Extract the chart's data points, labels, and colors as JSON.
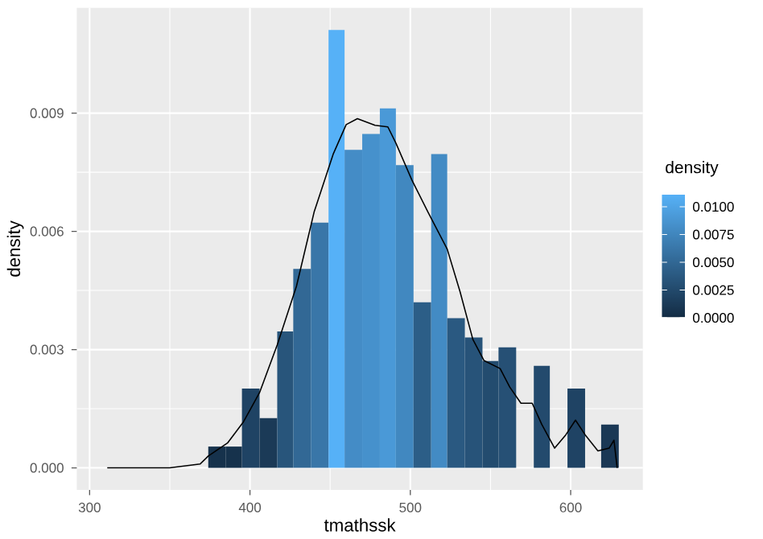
{
  "chart_data": {
    "type": "histogram",
    "xlabel": "tmathssk",
    "ylabel": "density",
    "clabel": "density",
    "bins": [
      374,
      385,
      395,
      406,
      417,
      427,
      438,
      449,
      459,
      470,
      481,
      491,
      502,
      513,
      523,
      534,
      545,
      555,
      566,
      577,
      587,
      598,
      609,
      619,
      630
    ],
    "values": [
      0.00054,
      0.00054,
      0.00201,
      0.00126,
      0.00346,
      0.00505,
      0.00622,
      0.01111,
      0.00807,
      0.00847,
      0.00912,
      0.00768,
      0.0042,
      0.00796,
      0.0038,
      0.00331,
      0.00271,
      0.00306,
      0,
      0.00259,
      0,
      0.00201,
      0,
      0.0011
    ],
    "colors": [
      "#16324C",
      "#16324C",
      "#1F4364",
      "#1B3A57",
      "#28557B",
      "#326895",
      "#3976A8",
      "#56B1F7",
      "#448CC6",
      "#4691CC",
      "#4A99D7",
      "#4188C0",
      "#2C5E87",
      "#438BC4",
      "#2A5981",
      "#275379",
      "#234C6F",
      "#265075",
      "#132B43",
      "#234A6D",
      "#132B43",
      "#1F4364",
      "#132B43",
      "#1A3855"
    ],
    "series": [
      {
        "type": "line",
        "color": "#000000",
        "x": [
          311,
          350,
          369,
          374,
          386,
          396,
          406,
          417,
          429,
          440,
          452,
          460,
          467,
          478,
          486,
          491,
          501,
          511,
          523,
          531,
          539,
          546,
          556,
          562,
          569,
          576,
          582,
          590,
          597,
          603,
          609,
          617,
          624,
          627,
          629
        ],
        "values": [
          0,
          0,
          0.0001,
          0.0003,
          0.00063,
          0.00117,
          0.00191,
          0.00312,
          0.00461,
          0.00649,
          0.00797,
          0.00871,
          0.00886,
          0.00869,
          0.00865,
          0.00824,
          0.0073,
          0.00649,
          0.00555,
          0.00447,
          0.00326,
          0.00272,
          0.00252,
          0.00205,
          0.00164,
          0.00164,
          0.0011,
          0.0005,
          0.00084,
          0.00121,
          0.00084,
          0.00043,
          0.0005,
          0.0007,
          0
        ]
      }
    ],
    "xlim": [
      292,
      645
    ],
    "ylim": [
      -0.00056,
      0.01167
    ],
    "xticks": [
      300,
      400,
      500,
      600
    ],
    "yticks": [
      {
        "value": 0,
        "label": "0.000"
      },
      {
        "value": 0.003,
        "label": "0.003"
      },
      {
        "value": 0.006,
        "label": "0.006"
      },
      {
        "value": 0.009,
        "label": "0.009"
      }
    ],
    "clim": [
      0,
      0.0111
    ],
    "cticks": [
      {
        "value": 0,
        "label": "0.0000"
      },
      {
        "value": 0.0025,
        "label": "0.0025"
      },
      {
        "value": 0.005,
        "label": "0.0050"
      },
      {
        "value": 0.0075,
        "label": "0.0075"
      },
      {
        "value": 0.01,
        "label": "0.0100"
      }
    ],
    "grid": true
  }
}
